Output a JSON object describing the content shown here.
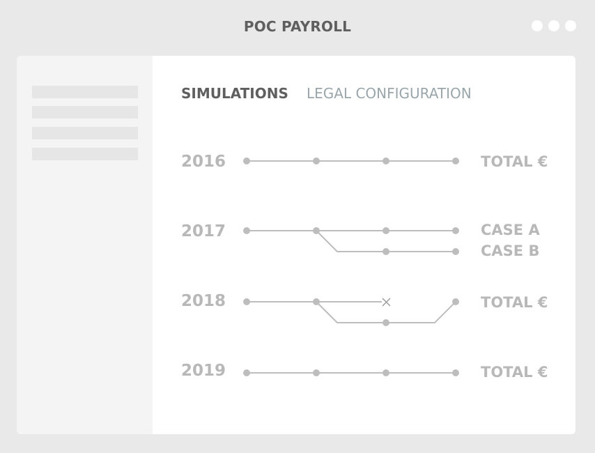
{
  "app": {
    "title": "POC PAYROLL"
  },
  "tabs": {
    "simulations": "SIMULATIONS",
    "legal_configuration": "LEGAL CONFIGURATION"
  },
  "rows": [
    {
      "year": "2016",
      "labels": [
        "TOTAL €"
      ]
    },
    {
      "year": "2017",
      "labels": [
        "CASE A",
        "CASE B"
      ]
    },
    {
      "year": "2018",
      "labels": [
        "TOTAL €"
      ]
    },
    {
      "year": "2019",
      "labels": [
        "TOTAL €"
      ]
    }
  ]
}
